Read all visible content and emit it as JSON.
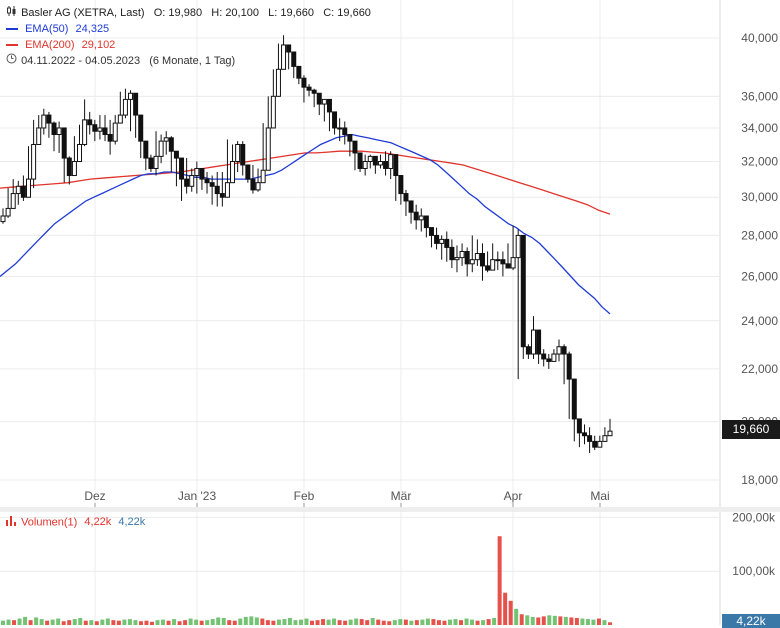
{
  "header": {
    "title": "Basler AG",
    "exchange": "(XETRA, Last)",
    "ohlc": {
      "o_label": "O:",
      "o": "19,980",
      "h_label": "H:",
      "h": "20,100",
      "l_label": "L:",
      "l": "19,660",
      "c_label": "C:",
      "c": "19,660"
    },
    "ema50": {
      "label": "EMA(50)",
      "value": "24,325",
      "color": "#1f3bd6"
    },
    "ema200": {
      "label": "EMA(200)",
      "value": "29,102",
      "color": "#e0342c"
    },
    "range": {
      "dates": "04.11.2022 - 04.05.2023",
      "period": "(6 Monate, 1 Tag)"
    }
  },
  "price_badge": "19,660",
  "volume_panel": {
    "label": "Volumen(1)",
    "value_red": "4,22k",
    "value_blue": "4,22k",
    "badge": "4,22k",
    "up_color": "#5cb85c",
    "down_color": "#e0342c"
  },
  "chart_data": [
    {
      "type": "candlestick",
      "title": "Basler AG (XETRA, Last)",
      "x_tick_labels": [
        "Dez",
        "Jan '23",
        "Feb",
        "Mär",
        "Apr",
        "Mai"
      ],
      "y_tick_labels": [
        "18,000",
        "20,000",
        "22,000",
        "24,000",
        "26,000",
        "28,000",
        "30,000",
        "32,000",
        "34,000",
        "36,000",
        "40,000"
      ],
      "y_ticks": [
        18,
        20,
        22,
        24,
        26,
        28,
        30,
        32,
        34,
        36,
        40
      ],
      "scale": "log",
      "ylim": [
        17.5,
        42.5
      ],
      "close": [
        29.0,
        29.4,
        30.2,
        30.6,
        30.0,
        31.0,
        33.0,
        34.0,
        34.8,
        34.3,
        33.6,
        34.0,
        32.2,
        31.2,
        32.0,
        33.0,
        34.5,
        34.2,
        33.8,
        34.0,
        33.6,
        33.2,
        34.3,
        34.8,
        35.8,
        36.2,
        34.8,
        33.2,
        32.2,
        31.6,
        32.3,
        33.2,
        33.4,
        32.6,
        32.2,
        31.0,
        30.6,
        31.2,
        31.6,
        31.0,
        30.8,
        30.6,
        30.2,
        30.0,
        30.8,
        32.0,
        33.0,
        31.8,
        31.0,
        30.4,
        30.8,
        31.5,
        34.0,
        36.0,
        37.8,
        39.5,
        39.0,
        38.0,
        37.2,
        36.6,
        36.4,
        36.2,
        35.5,
        35.8,
        35.0,
        34.0,
        34.0,
        33.6,
        33.2,
        32.5,
        31.6,
        32.0,
        32.3,
        31.8,
        32.0,
        31.6,
        32.4,
        31.2,
        30.2,
        29.8,
        29.2,
        28.8,
        29.0,
        28.4,
        28.0,
        27.6,
        27.8,
        27.4,
        26.8,
        26.9,
        27.2,
        26.6,
        26.8,
        27.1,
        26.5,
        26.3,
        26.8,
        26.8,
        26.6,
        26.4,
        26.9,
        28.0,
        22.9,
        22.6,
        23.6,
        22.6,
        22.4,
        22.3,
        22.6,
        22.9,
        22.6,
        21.6,
        20.1,
        19.6,
        19.5,
        19.3,
        19.1,
        19.3,
        19.5,
        19.66
      ],
      "high": [
        29.4,
        30.5,
        31.0,
        30.9,
        31.2,
        32.9,
        34.5,
        34.8,
        35.2,
        35.0,
        34.4,
        34.4,
        33.0,
        32.3,
        33.5,
        34.2,
        35.8,
        35.0,
        34.5,
        34.8,
        34.8,
        34.5,
        34.8,
        36.3,
        36.5,
        36.4,
        35.3,
        34.0,
        32.8,
        32.4,
        33.8,
        33.6,
        33.8,
        33.5,
        32.6,
        31.8,
        32.2,
        31.6,
        32.0,
        31.4,
        31.4,
        31.2,
        31.4,
        31.4,
        33.3,
        33.0,
        33.2,
        33.2,
        31.6,
        31.8,
        31.6,
        34.3,
        36.0,
        37.8,
        39.6,
        40.2,
        39.4,
        38.4,
        37.4,
        37.4,
        36.8,
        36.5,
        35.7,
        35.8,
        35.0,
        34.6,
        34.6,
        34.4,
        33.6,
        32.7,
        32.4,
        32.4,
        32.4,
        32.3,
        32.4,
        32.6,
        32.6,
        31.6,
        30.8,
        30.4,
        29.8,
        29.6,
        29.4,
        28.8,
        28.4,
        28.4,
        28.0,
        28.2,
        27.8,
        27.5,
        27.6,
        27.4,
        28.0,
        27.8,
        27.6,
        27.2,
        27.6,
        27.2,
        27.2,
        27.6,
        28.5,
        28.3,
        23.6,
        23.0,
        24.2,
        23.6,
        22.8,
        22.6,
        22.8,
        23.2,
        23.0,
        22.7,
        21.6,
        20.1,
        19.9,
        19.8,
        19.5,
        19.5,
        19.8,
        20.1
      ],
      "low": [
        28.6,
        28.9,
        29.4,
        29.6,
        29.8,
        30.6,
        30.5,
        33.2,
        33.6,
        33.4,
        32.6,
        32.5,
        30.8,
        30.7,
        31.4,
        32.6,
        32.9,
        33.6,
        33.2,
        33.3,
        33.2,
        32.4,
        33.0,
        34.6,
        34.6,
        33.8,
        33.4,
        32.2,
        31.5,
        31.4,
        31.2,
        31.9,
        32.4,
        31.4,
        30.6,
        29.8,
        30.2,
        30.3,
        30.2,
        30.4,
        30.2,
        29.6,
        29.5,
        29.5,
        30.0,
        31.2,
        31.4,
        31.2,
        30.8,
        30.2,
        30.3,
        31.3,
        32.8,
        35.0,
        36.2,
        38.4,
        37.8,
        37.2,
        36.8,
        35.6,
        36.0,
        35.3,
        34.8,
        34.4,
        33.8,
        33.6,
        33.2,
        33.0,
        32.3,
        31.5,
        31.4,
        31.2,
        31.6,
        31.3,
        31.6,
        31.2,
        31.0,
        29.8,
        29.6,
        29.0,
        28.6,
        28.3,
        28.2,
        27.9,
        27.4,
        27.3,
        26.8,
        26.7,
        26.4,
        26.2,
        26.5,
        26.0,
        26.2,
        26.5,
        25.8,
        26.2,
        26.3,
        26.3,
        26.0,
        26.6,
        26.3,
        21.6,
        22.4,
        22.4,
        22.4,
        22.2,
        22.1,
        22.0,
        22.4,
        22.3,
        21.4,
        20.1,
        19.3,
        19.1,
        19.2,
        18.9,
        19.0,
        19.2,
        19.4,
        19.6
      ],
      "ema50": [
        26.0,
        26.3,
        26.6,
        27.0,
        27.4,
        27.8,
        28.2,
        28.6,
        28.9,
        29.2,
        29.5,
        29.8,
        30.0,
        30.2,
        30.4,
        30.6,
        30.8,
        31.0,
        31.2,
        31.3,
        31.3,
        31.4,
        31.4,
        31.3,
        31.2,
        31.1,
        31.1,
        31.0,
        31.0,
        31.0,
        31.0,
        31.0,
        31.0,
        31.1,
        31.2,
        31.3,
        31.5,
        31.8,
        32.1,
        32.4,
        32.7,
        33.0,
        33.2,
        33.4,
        33.5,
        33.6,
        33.5,
        33.4,
        33.3,
        33.2,
        33.1,
        32.9,
        32.7,
        32.5,
        32.3,
        32.1,
        31.8,
        31.4,
        31.0,
        30.6,
        30.2,
        29.9,
        29.5,
        29.2,
        28.9,
        28.6,
        28.4,
        28.1,
        27.9,
        27.6,
        27.2,
        26.8,
        26.4,
        26.0,
        25.6,
        25.3,
        25.0,
        24.6,
        24.3
      ],
      "ema200": [
        30.5,
        30.55,
        30.6,
        30.65,
        30.7,
        30.75,
        30.8,
        30.9,
        31.0,
        31.05,
        31.1,
        31.15,
        31.2,
        31.25,
        31.3,
        31.35,
        31.4,
        31.5,
        31.6,
        31.7,
        31.8,
        31.9,
        32.0,
        32.1,
        32.2,
        32.3,
        32.4,
        32.5,
        32.5,
        32.55,
        32.6,
        32.6,
        32.6,
        32.55,
        32.5,
        32.4,
        32.3,
        32.2,
        32.1,
        32.0,
        31.9,
        31.8,
        31.6,
        31.4,
        31.2,
        31.0,
        30.8,
        30.6,
        30.4,
        30.2,
        30.0,
        29.8,
        29.6,
        29.3,
        29.1
      ]
    },
    {
      "type": "bar",
      "title": "Volumen(1)",
      "y_tick_labels": [
        "100,00k",
        "200,00k"
      ],
      "y_ticks": [
        100,
        200
      ],
      "ylim": [
        0,
        210
      ],
      "values": [
        8,
        10,
        9,
        12,
        15,
        9,
        14,
        11,
        8,
        10,
        12,
        7,
        9,
        11,
        13,
        8,
        9,
        7,
        10,
        12,
        9,
        8,
        10,
        11,
        9,
        7,
        8,
        6,
        9,
        10,
        8,
        11,
        7,
        9,
        12,
        10,
        8,
        9,
        11,
        14,
        13,
        9,
        8,
        12,
        15,
        16,
        14,
        12,
        9,
        8,
        10,
        11,
        13,
        9,
        10,
        12,
        8,
        9,
        11,
        10,
        12,
        9,
        8,
        10,
        12,
        11,
        9,
        13,
        10,
        8,
        7,
        9,
        11,
        10,
        8,
        9,
        10,
        12,
        11,
        9,
        8,
        10,
        11,
        9,
        12,
        10,
        8,
        9,
        11,
        13,
        165,
        60,
        45,
        30,
        20,
        18,
        15,
        14,
        16,
        18,
        17,
        16,
        15,
        14,
        13,
        12,
        11,
        10,
        12,
        9,
        5
      ],
      "up": [
        1,
        1,
        0,
        1,
        1,
        0,
        1,
        1,
        0,
        1,
        1,
        0,
        0,
        1,
        1,
        0,
        1,
        0,
        1,
        1,
        0,
        0,
        1,
        1,
        1,
        0,
        0,
        0,
        1,
        1,
        0,
        1,
        0,
        0,
        1,
        1,
        0,
        1,
        1,
        1,
        1,
        0,
        0,
        1,
        1,
        1,
        1,
        0,
        0,
        0,
        1,
        1,
        1,
        1,
        1,
        1,
        0,
        0,
        0,
        1,
        1,
        0,
        0,
        1,
        1,
        0,
        0,
        1,
        0,
        0,
        0,
        1,
        1,
        0,
        1,
        0,
        1,
        1,
        0,
        0,
        0,
        1,
        1,
        0,
        1,
        1,
        0,
        1,
        0,
        1,
        0,
        0,
        0,
        1,
        0,
        1,
        1,
        0,
        0,
        1,
        1,
        0,
        1,
        0,
        0,
        1,
        1,
        1,
        0,
        1,
        0
      ]
    }
  ]
}
